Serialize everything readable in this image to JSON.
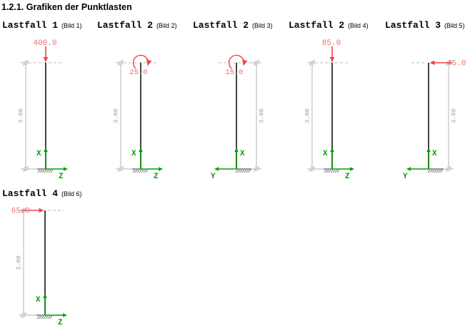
{
  "page": {
    "title": "1.2.1. Grafiken der Punktlasten"
  },
  "colors": {
    "load_text": "#f06e6e",
    "load_arrow": "#ee4545",
    "axis": "#00a000",
    "column": "#303030",
    "dim_line": "#b3b3b3",
    "dim_text": "#9a9a9a",
    "hatch": "#666666",
    "dash": "#bbbbbb"
  },
  "dimension_label": "3.00",
  "axes_labels": {
    "x": "X",
    "y": "Y",
    "z": "Z"
  },
  "diagrams": [
    {
      "title": "Lastfall 1",
      "subtitle": "(Bild 1)",
      "load_type": "force-down",
      "load_value": "400.0",
      "view": "XZ",
      "dim_side": "left",
      "row": 1,
      "col": 0
    },
    {
      "title": "Lastfall 2",
      "subtitle": "(Bild 2)",
      "load_type": "moment",
      "load_value": "25.0",
      "view": "XZ",
      "dim_side": "left",
      "row": 1,
      "col": 1
    },
    {
      "title": "Lastfall 2",
      "subtitle": "(Bild 3)",
      "load_type": "moment",
      "load_value": "15.0",
      "view": "XY",
      "dim_side": "right",
      "row": 1,
      "col": 2
    },
    {
      "title": "Lastfall 2",
      "subtitle": "(Bild 4)",
      "load_type": "force-down",
      "load_value": "85.0",
      "view": "XZ",
      "dim_side": "left",
      "row": 1,
      "col": 3
    },
    {
      "title": "Lastfall 3",
      "subtitle": "(Bild 5)",
      "load_type": "force-left",
      "load_value": "45.0",
      "view": "XY",
      "dim_side": "right",
      "row": 1,
      "col": 4
    },
    {
      "title": "Lastfall 4",
      "subtitle": "(Bild 6)",
      "load_type": "force-right",
      "load_value": "65.0",
      "view": "XZ",
      "dim_side": "left",
      "row": 2,
      "col": 0
    }
  ]
}
